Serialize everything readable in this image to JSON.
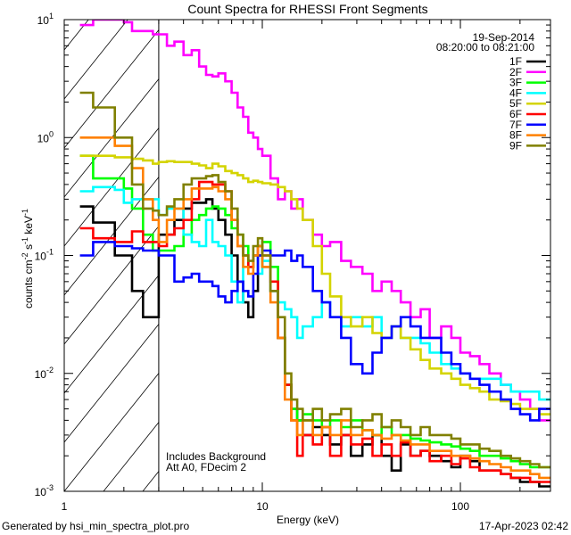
{
  "chart_data": {
    "type": "line",
    "title": "Count Spectra for RHESSI Front Segments",
    "xlabel": "Energy (keV)",
    "ylabel": {
      "base": "counts cm",
      "e1": "-2",
      "mid": " s",
      "e2": "-1",
      "mid2": " keV",
      "e3": "-1"
    },
    "xscale": "log",
    "yscale": "log",
    "xlim": [
      1,
      285
    ],
    "ylim": [
      0.001,
      10
    ],
    "x_tick_labels": [
      {
        "value": 1,
        "label": "1"
      },
      {
        "value": 10,
        "label": "10"
      },
      {
        "value": 100,
        "label": "100"
      }
    ],
    "y_tick_labels": [
      {
        "value": 10,
        "base": "10",
        "exp": "1"
      },
      {
        "value": 1,
        "base": "10",
        "exp": "0"
      },
      {
        "value": 0.1,
        "base": "10",
        "exp": "-1"
      },
      {
        "value": 0.01,
        "base": "10",
        "exp": "-2"
      },
      {
        "value": 0.001,
        "base": "10",
        "exp": "-3"
      }
    ],
    "shaded_region_keV": [
      1,
      3
    ],
    "date": "19-Sep-2014",
    "time_range": "08:20:00 to 08:21:00",
    "annotations": [
      "Includes Background",
      "Att A0, FDecim 2"
    ],
    "legend_position": "top-right",
    "energy_edges": [
      1.2,
      1.4,
      1.6,
      1.8,
      2.0,
      2.2,
      2.5,
      2.8,
      3.0,
      3.3,
      3.6,
      4.0,
      4.4,
      4.8,
      5.2,
      5.6,
      6.0,
      6.5,
      7.0,
      7.5,
      8.0,
      8.5,
      9.0,
      9.5,
      10,
      11,
      12,
      13,
      14,
      15,
      16,
      18,
      20,
      22,
      25,
      28,
      32,
      36,
      40,
      45,
      50,
      56,
      63,
      70,
      80,
      90,
      100,
      112,
      125,
      140,
      160,
      180,
      200,
      225,
      250,
      285
    ],
    "series": [
      {
        "name": "1F",
        "color": "#000000",
        "values": [
          0.26,
          0.19,
          0.19,
          0.1,
          0.1,
          0.05,
          0.03,
          0.03,
          0.15,
          0.15,
          0.2,
          0.25,
          0.28,
          0.28,
          0.3,
          0.25,
          0.2,
          0.15,
          0.1,
          0.06,
          0.04,
          0.03,
          0.05,
          0.1,
          0.08,
          0.05,
          0.02,
          0.008,
          0.005,
          0.004,
          0.003,
          0.0035,
          0.003,
          0.0025,
          0.003,
          0.002,
          0.0025,
          0.003,
          0.002,
          0.0015,
          0.0025,
          0.002,
          0.0022,
          0.002,
          0.0018,
          0.0016,
          0.002,
          0.0018,
          0.0015,
          0.0015,
          0.0014,
          0.0013,
          0.0012,
          0.0012,
          0.0011
        ]
      },
      {
        "name": "2F",
        "color": "#ff00ff",
        "values": [
          9,
          10,
          10,
          10,
          9.5,
          8,
          8,
          7.5,
          7.5,
          6,
          6.5,
          5,
          5.5,
          4,
          3.4,
          3.3,
          3.5,
          3,
          2.4,
          1.8,
          1.5,
          1.1,
          1.0,
          0.8,
          0.7,
          0.45,
          0.3,
          0.35,
          0.25,
          0.3,
          0.2,
          0.15,
          0.12,
          0.13,
          0.09,
          0.08,
          0.07,
          0.05,
          0.06,
          0.05,
          0.04,
          0.03,
          0.035,
          0.02,
          0.025,
          0.02,
          0.015,
          0.014,
          0.012,
          0.01,
          0.008,
          0.007,
          0.006,
          0.005,
          0.004
        ]
      },
      {
        "name": "3F",
        "color": "#00ff00",
        "values": [
          0.7,
          0.45,
          0.45,
          0.45,
          0.37,
          0.25,
          0.15,
          0.11,
          0.11,
          0.11,
          0.12,
          0.15,
          0.2,
          0.22,
          0.25,
          0.26,
          0.25,
          0.22,
          0.17,
          0.15,
          0.12,
          0.08,
          0.1,
          0.12,
          0.13,
          0.08,
          0.02,
          0.008,
          0.005,
          0.004,
          0.0045,
          0.004,
          0.0035,
          0.004,
          0.0035,
          0.004,
          0.0033,
          0.003,
          0.0035,
          0.003,
          0.003,
          0.0028,
          0.0027,
          0.0026,
          0.0025,
          0.0024,
          0.0023,
          0.0022,
          0.002,
          0.002,
          0.0019,
          0.0018,
          0.0017,
          0.0016,
          0.0016
        ]
      },
      {
        "name": "4F",
        "color": "#00ffff",
        "values": [
          0.35,
          0.38,
          0.38,
          0.36,
          0.28,
          0.3,
          0.3,
          0.3,
          0.22,
          0.25,
          0.25,
          0.15,
          0.13,
          0.12,
          0.2,
          0.13,
          0.12,
          0.1,
          0.06,
          0.04,
          0.1,
          0.08,
          0.1,
          0.07,
          0.09,
          0.05,
          0.04,
          0.035,
          0.03,
          0.02,
          0.025,
          0.03,
          0.04,
          0.03,
          0.025,
          0.03,
          0.025,
          0.03,
          0.02,
          0.025,
          0.02,
          0.02,
          0.018,
          0.015,
          0.012,
          0.011,
          0.01,
          0.009,
          0.009,
          0.009,
          0.008,
          0.007,
          0.007,
          0.007,
          0.006
        ]
      },
      {
        "name": "5F",
        "color": "#d4d400",
        "values": [
          0.7,
          0.7,
          0.7,
          0.68,
          0.68,
          0.66,
          0.64,
          0.6,
          0.62,
          0.63,
          0.62,
          0.62,
          0.6,
          0.58,
          0.55,
          0.6,
          0.57,
          0.52,
          0.5,
          0.48,
          0.45,
          0.42,
          0.43,
          0.42,
          0.41,
          0.4,
          0.38,
          0.35,
          0.3,
          0.25,
          0.2,
          0.12,
          0.07,
          0.045,
          0.03,
          0.025,
          0.03,
          0.022,
          0.02,
          0.025,
          0.02,
          0.016,
          0.013,
          0.011,
          0.01,
          0.009,
          0.008,
          0.0075,
          0.007,
          0.006,
          0.0058,
          0.0055,
          0.005,
          0.005,
          0.0045
        ]
      },
      {
        "name": "6F",
        "color": "#ff0000",
        "values": [
          0.17,
          0.14,
          0.14,
          0.13,
          0.13,
          0.16,
          0.13,
          0.13,
          0.12,
          0.15,
          0.17,
          0.2,
          0.3,
          0.42,
          0.42,
          0.4,
          0.4,
          0.35,
          0.2,
          0.12,
          0.1,
          0.08,
          0.1,
          0.12,
          0.1,
          0.06,
          0.02,
          0.008,
          0.004,
          0.002,
          0.003,
          0.0025,
          0.0035,
          0.002,
          0.003,
          0.0025,
          0.0028,
          0.002,
          0.0025,
          0.002,
          0.0026,
          0.002,
          0.0022,
          0.0018,
          0.002,
          0.0017,
          0.0019,
          0.0016,
          0.0015,
          0.0015,
          0.0014,
          0.0013,
          0.0013,
          0.0012,
          0.0012
        ]
      },
      {
        "name": "7F",
        "color": "#0000ff",
        "values": [
          0.1,
          0.13,
          0.13,
          0.12,
          0.12,
          0.115,
          0.11,
          0.11,
          0.1,
          0.1,
          0.06,
          0.065,
          0.07,
          0.06,
          0.06,
          0.055,
          0.045,
          0.04,
          0.05,
          0.06,
          0.05,
          0.045,
          0.07,
          0.1,
          0.11,
          0.1,
          0.1,
          0.11,
          0.09,
          0.1,
          0.08,
          0.05,
          0.04,
          0.03,
          0.02,
          0.012,
          0.01,
          0.015,
          0.02,
          0.025,
          0.03,
          0.025,
          0.02,
          0.02,
          0.015,
          0.012,
          0.01,
          0.009,
          0.008,
          0.007,
          0.006,
          0.005,
          0.0045,
          0.004,
          0.005
        ]
      },
      {
        "name": "8F",
        "color": "#ff8000",
        "values": [
          1.0,
          1.0,
          1.0,
          0.85,
          0.85,
          0.55,
          0.3,
          0.2,
          0.13,
          0.2,
          0.25,
          0.3,
          0.37,
          0.37,
          0.37,
          0.38,
          0.35,
          0.3,
          0.2,
          0.12,
          0.08,
          0.07,
          0.1,
          0.12,
          0.08,
          0.04,
          0.02,
          0.006,
          0.004,
          0.003,
          0.004,
          0.003,
          0.0035,
          0.003,
          0.004,
          0.003,
          0.0033,
          0.003,
          0.0028,
          0.003,
          0.0027,
          0.0025,
          0.0025,
          0.0022,
          0.0022,
          0.002,
          0.002,
          0.0019,
          0.0018,
          0.0017,
          0.0016,
          0.0015,
          0.0015,
          0.0014,
          0.0013
        ]
      },
      {
        "name": "9F",
        "color": "#808000",
        "values": [
          2.4,
          1.8,
          1.8,
          1.0,
          1.0,
          0.4,
          0.25,
          0.24,
          0.22,
          0.26,
          0.3,
          0.4,
          0.45,
          0.45,
          0.47,
          0.48,
          0.42,
          0.35,
          0.25,
          0.15,
          0.1,
          0.09,
          0.12,
          0.14,
          0.1,
          0.05,
          0.03,
          0.01,
          0.006,
          0.005,
          0.004,
          0.005,
          0.004,
          0.0045,
          0.005,
          0.0035,
          0.004,
          0.0045,
          0.0035,
          0.004,
          0.0035,
          0.003,
          0.0035,
          0.003,
          0.003,
          0.0028,
          0.0025,
          0.0025,
          0.0023,
          0.0022,
          0.002,
          0.0019,
          0.0018,
          0.0017,
          0.0016
        ]
      }
    ]
  },
  "footer": {
    "generated_by": "Generated by hsi_min_spectra_plot.pro",
    "timestamp": "17-Apr-2023 02:42"
  }
}
